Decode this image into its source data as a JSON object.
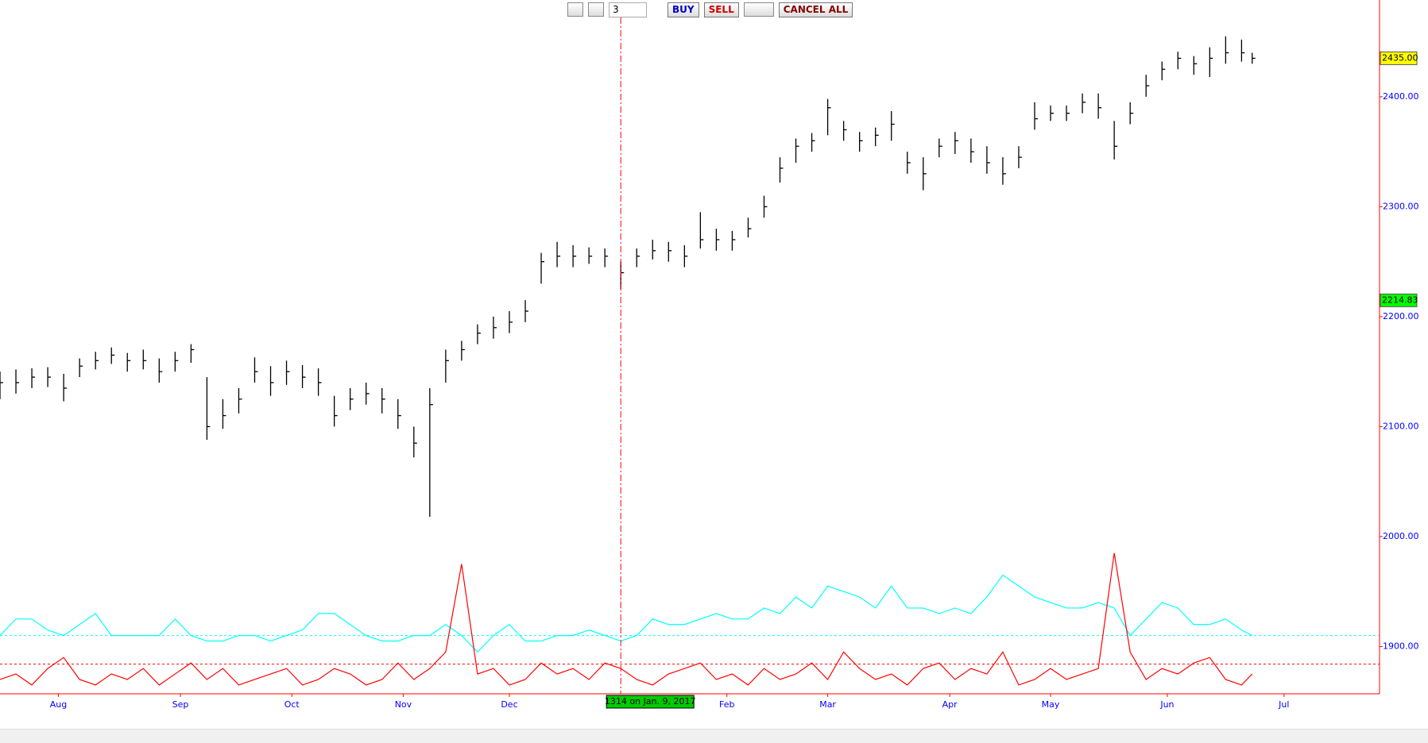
{
  "toolbar": {
    "quantity": "3",
    "buy": "BUY",
    "sell": "SELL",
    "cancel_all": "CANCEL ALL"
  },
  "chart_data": {
    "type": "ohlc",
    "x": [
      0,
      3,
      6,
      9,
      12,
      15,
      18,
      21,
      24,
      27,
      30,
      33,
      36,
      39,
      42,
      45,
      48,
      51,
      54,
      57,
      60,
      63,
      66,
      69,
      72,
      75,
      78,
      81,
      84,
      87,
      90,
      93,
      96,
      99,
      102,
      105,
      108,
      111,
      114,
      117,
      120,
      123,
      126,
      129,
      132,
      135,
      138,
      141,
      144,
      147,
      150,
      153,
      156,
      159,
      162,
      165,
      168,
      171,
      174,
      177,
      180,
      183,
      186,
      189,
      192,
      195,
      198,
      201,
      204,
      207,
      210,
      213,
      216,
      219,
      222,
      225,
      228,
      231,
      234,
      236
    ],
    "high": [
      2150,
      2152,
      2153,
      2154,
      2148,
      2162,
      2168,
      2172,
      2167,
      2170,
      2162,
      2168,
      2175,
      2145,
      2125,
      2135,
      2163,
      2155,
      2160,
      2156,
      2153,
      2128,
      2135,
      2140,
      2135,
      2125,
      2100,
      2135,
      2170,
      2178,
      2193,
      2200,
      2205,
      2215,
      2258,
      2268,
      2265,
      2263,
      2262,
      2250,
      2262,
      2270,
      2268,
      2265,
      2295,
      2280,
      2278,
      2290,
      2310,
      2345,
      2362,
      2367,
      2398,
      2378,
      2368,
      2372,
      2387,
      2350,
      2345,
      2362,
      2368,
      2362,
      2355,
      2345,
      2355,
      2395,
      2392,
      2392,
      2403,
      2403,
      2378,
      2395,
      2420,
      2432,
      2441,
      2437,
      2445,
      2455,
      2452,
      2440
    ],
    "low": [
      2125,
      2130,
      2135,
      2136,
      2123,
      2145,
      2152,
      2157,
      2150,
      2152,
      2140,
      2150,
      2158,
      2088,
      2098,
      2112,
      2140,
      2128,
      2138,
      2135,
      2128,
      2100,
      2115,
      2120,
      2112,
      2098,
      2072,
      2018,
      2140,
      2160,
      2175,
      2180,
      2185,
      2195,
      2230,
      2245,
      2245,
      2248,
      2245,
      2225,
      2245,
      2252,
      2250,
      2245,
      2262,
      2260,
      2260,
      2272,
      2290,
      2322,
      2340,
      2350,
      2365,
      2360,
      2350,
      2355,
      2360,
      2330,
      2315,
      2345,
      2348,
      2340,
      2330,
      2320,
      2335,
      2370,
      2378,
      2378,
      2385,
      2380,
      2343,
      2375,
      2400,
      2415,
      2425,
      2420,
      2418,
      2430,
      2432,
      2430
    ],
    "close": [
      2140,
      2140,
      2145,
      2145,
      2135,
      2155,
      2160,
      2165,
      2160,
      2160,
      2150,
      2160,
      2170,
      2100,
      2110,
      2125,
      2150,
      2140,
      2150,
      2145,
      2140,
      2110,
      2125,
      2130,
      2125,
      2110,
      2085,
      2120,
      2160,
      2170,
      2185,
      2190,
      2195,
      2205,
      2250,
      2255,
      2255,
      2255,
      2255,
      2240,
      2255,
      2260,
      2260,
      2255,
      2270,
      2270,
      2270,
      2280,
      2300,
      2335,
      2355,
      2360,
      2390,
      2370,
      2360,
      2365,
      2375,
      2340,
      2330,
      2355,
      2360,
      2350,
      2340,
      2330,
      2345,
      2380,
      2385,
      2385,
      2395,
      2390,
      2355,
      2385,
      2410,
      2425,
      2435,
      2430,
      2435,
      2440,
      2440,
      2435
    ],
    "bar_color": "#000000",
    "series": [
      {
        "color": "#00ffff",
        "values": [
          1910,
          1925,
          1925,
          1915,
          1910,
          1920,
          1930,
          1910,
          1910,
          1910,
          1910,
          1925,
          1910,
          1905,
          1905,
          1910,
          1910,
          1905,
          1910,
          1915,
          1930,
          1930,
          1920,
          1910,
          1905,
          1905,
          1910,
          1910,
          1920,
          1910,
          1895,
          1910,
          1920,
          1905,
          1905,
          1910,
          1910,
          1915,
          1910,
          1905,
          1910,
          1925,
          1920,
          1920,
          1925,
          1930,
          1925,
          1925,
          1935,
          1930,
          1945,
          1935,
          1955,
          1950,
          1945,
          1935,
          1955,
          1935,
          1935,
          1930,
          1935,
          1930,
          1945,
          1965,
          1955,
          1945,
          1940,
          1935,
          1935,
          1940,
          1935,
          1910,
          1925,
          1940,
          1935,
          1920,
          1920,
          1925,
          1915,
          1910
        ],
        "reference": 1910
      },
      {
        "color": "#ff0000",
        "values": [
          1870,
          1875,
          1865,
          1880,
          1890,
          1870,
          1865,
          1875,
          1870,
          1880,
          1865,
          1875,
          1885,
          1870,
          1880,
          1865,
          1870,
          1875,
          1880,
          1865,
          1870,
          1880,
          1875,
          1865,
          1870,
          1885,
          1870,
          1880,
          1895,
          1975,
          1875,
          1880,
          1865,
          1870,
          1885,
          1875,
          1880,
          1870,
          1885,
          1880,
          1870,
          1865,
          1875,
          1880,
          1885,
          1870,
          1875,
          1865,
          1880,
          1870,
          1875,
          1885,
          1870,
          1895,
          1880,
          1870,
          1875,
          1865,
          1880,
          1885,
          1870,
          1880,
          1875,
          1895,
          1865,
          1870,
          1880,
          1870,
          1875,
          1880,
          1985,
          1895,
          1870,
          1880,
          1875,
          1885,
          1890,
          1870,
          1865,
          1875
        ],
        "reference": 1884
      }
    ],
    "xlim": [
      0,
      260
    ],
    "xticks": [
      {
        "value": 11,
        "label": "Aug"
      },
      {
        "value": 34,
        "label": "Sep"
      },
      {
        "value": 55,
        "label": "Oct"
      },
      {
        "value": 76,
        "label": "Nov"
      },
      {
        "value": 96,
        "label": "Dec"
      },
      {
        "value": 137,
        "label": "Feb"
      },
      {
        "value": 156,
        "label": "Mar"
      },
      {
        "value": 179,
        "label": "Apr"
      },
      {
        "value": 198,
        "label": "May"
      },
      {
        "value": 220,
        "label": "Jun"
      },
      {
        "value": 242,
        "label": "Jul"
      }
    ],
    "ylim": [
      1857,
      2488
    ],
    "yticks": [
      {
        "value": 1900,
        "label": "1900.00"
      },
      {
        "value": 2000,
        "label": "2000.00"
      },
      {
        "value": 2100,
        "label": "2100.00"
      },
      {
        "value": 2200,
        "label": "2200.00"
      },
      {
        "value": 2300,
        "label": "2300.00"
      },
      {
        "value": 2400,
        "label": "2400.00"
      }
    ],
    "price_markers": [
      {
        "value": 2435,
        "label": "2435.00",
        "color": "#ffff00"
      },
      {
        "value": 2214.83,
        "label": "2214.83",
        "color": "#00ff00"
      }
    ],
    "cursor": {
      "x": 117,
      "label": "1314 on Jan. 9, 2017"
    }
  }
}
